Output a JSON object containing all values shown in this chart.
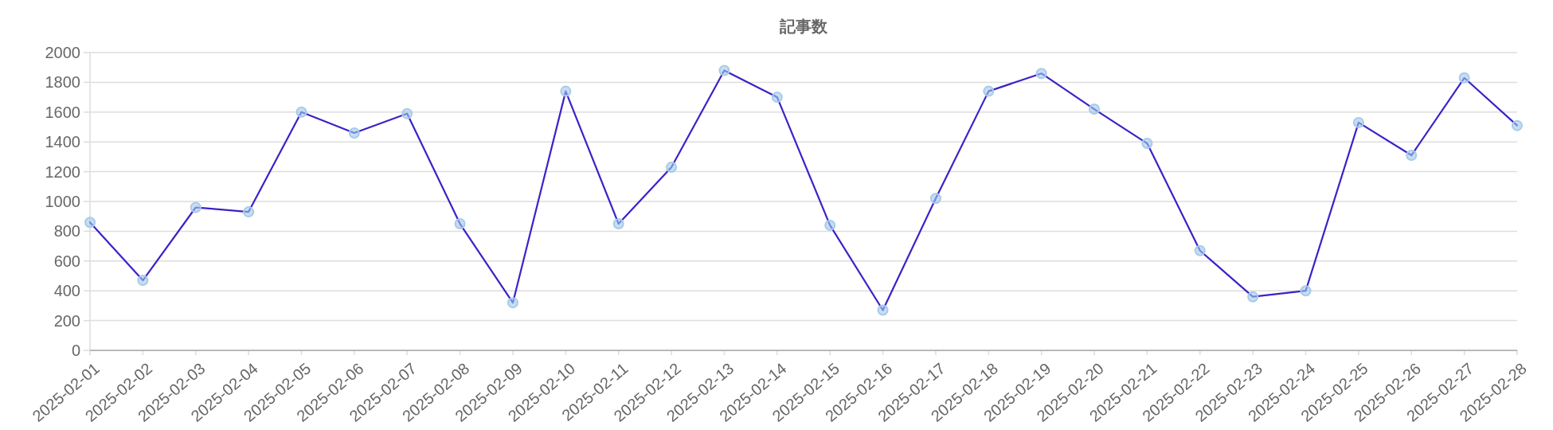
{
  "chart_data": {
    "type": "line",
    "title": "記事数",
    "categories": [
      "2025-02-01",
      "2025-02-02",
      "2025-02-03",
      "2025-02-04",
      "2025-02-05",
      "2025-02-06",
      "2025-02-07",
      "2025-02-08",
      "2025-02-09",
      "2025-02-10",
      "2025-02-11",
      "2025-02-12",
      "2025-02-13",
      "2025-02-14",
      "2025-02-15",
      "2025-02-16",
      "2025-02-17",
      "2025-02-18",
      "2025-02-19",
      "2025-02-20",
      "2025-02-21",
      "2025-02-22",
      "2025-02-23",
      "2025-02-24",
      "2025-02-25",
      "2025-02-26",
      "2025-02-27",
      "2025-02-28"
    ],
    "series": [
      {
        "color": "#3a22c8",
        "values": [
          860,
          470,
          960,
          930,
          1600,
          1460,
          1590,
          850,
          320,
          1740,
          850,
          1230,
          1880,
          1700,
          840,
          270,
          1020,
          1740,
          1860,
          1620,
          1390,
          670,
          360,
          400,
          1530,
          1310,
          1830,
          1510
        ]
      }
    ],
    "ylim": [
      0,
      2000
    ],
    "yticks": [
      0,
      200,
      400,
      600,
      800,
      1000,
      1200,
      1400,
      1600,
      1800,
      2000
    ],
    "grid": "y",
    "marker": "circle",
    "line_style": "solid"
  }
}
